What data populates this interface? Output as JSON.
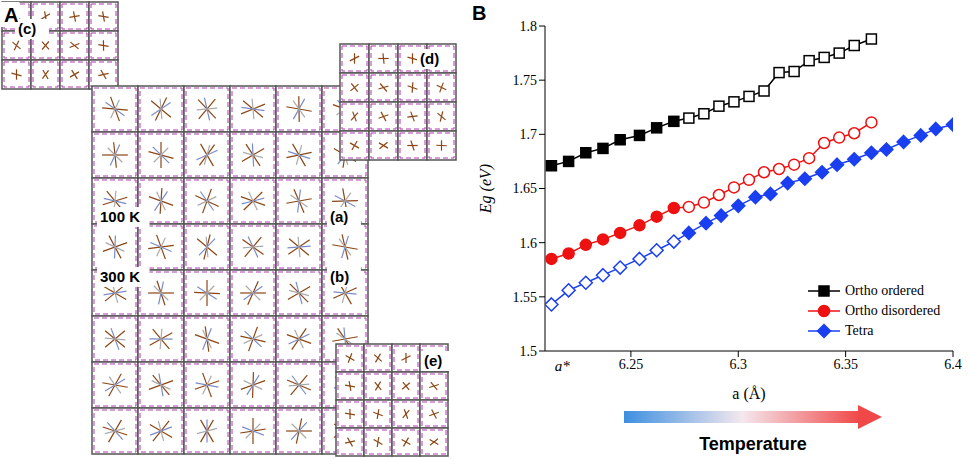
{
  "panel_letters": [
    "A",
    "B"
  ],
  "panel_a": {
    "labels": {
      "a": "(a)",
      "b": "(b)",
      "c": "(c)",
      "d": "(d)",
      "e": "(e)"
    },
    "temperatures": [
      "100 K",
      "300 K"
    ]
  },
  "chart_data": {
    "type": "line",
    "x_label": "a (Å)",
    "y_label": "Eg (eV)",
    "xlim": [
      6.21,
      6.4
    ],
    "xticks": [
      6.25,
      6.3,
      6.35,
      6.4
    ],
    "ylim": [
      1.5,
      1.8
    ],
    "yticks": [
      1.5,
      1.55,
      1.6,
      1.65,
      1.7,
      1.75,
      1.8
    ],
    "legend": "lower right",
    "annotations": [
      {
        "text": "a*",
        "x": 6.218
      }
    ],
    "arrow_label": "Temperature",
    "series": [
      {
        "name": "Ortho ordered",
        "color": "#000000",
        "marker": "square",
        "segments": [
          {
            "marker": "filled",
            "x": [
              6.213,
              6.221,
              6.229,
              6.237,
              6.245,
              6.254,
              6.262,
              6.27
            ],
            "values": [
              1.671,
              1.675,
              1.683,
              1.687,
              1.695,
              1.699,
              1.706,
              1.712
            ]
          },
          {
            "marker": "open",
            "x": [
              6.277,
              6.284,
              6.291,
              6.298,
              6.305,
              6.312,
              6.319,
              6.326,
              6.333,
              6.34,
              6.347,
              6.354,
              6.362
            ],
            "values": [
              1.715,
              1.719,
              1.726,
              1.73,
              1.735,
              1.74,
              1.757,
              1.758,
              1.768,
              1.771,
              1.775,
              1.782,
              1.788
            ]
          }
        ]
      },
      {
        "name": "Ortho disordered",
        "color": "#ee1111",
        "marker": "circle",
        "segments": [
          {
            "marker": "filled",
            "x": [
              6.213,
              6.221,
              6.229,
              6.237,
              6.245,
              6.254,
              6.262,
              6.27
            ],
            "values": [
              1.585,
              1.59,
              1.598,
              1.603,
              1.609,
              1.616,
              1.624,
              1.632
            ]
          },
          {
            "marker": "open",
            "x": [
              6.277,
              6.284,
              6.291,
              6.298,
              6.305,
              6.312,
              6.319,
              6.326,
              6.333,
              6.34,
              6.347,
              6.354,
              6.362
            ],
            "values": [
              1.633,
              1.637,
              1.644,
              1.651,
              1.658,
              1.665,
              1.668,
              1.672,
              1.678,
              1.692,
              1.697,
              1.701,
              1.711
            ]
          }
        ]
      },
      {
        "name": "Tetra",
        "color": "#1a3ff0",
        "marker": "diamond",
        "segments": [
          {
            "marker": "open",
            "x": [
              6.213,
              6.221,
              6.229,
              6.237,
              6.245,
              6.254,
              6.262,
              6.27
            ],
            "values": [
              1.543,
              1.556,
              1.563,
              1.57,
              1.577,
              1.585,
              1.593,
              1.601
            ]
          },
          {
            "marker": "filled",
            "x": [
              6.277,
              6.285,
              6.292,
              6.3,
              6.308,
              6.315,
              6.323,
              6.331,
              6.339,
              6.346,
              6.354,
              6.362,
              6.369,
              6.377,
              6.385,
              6.392,
              6.4
            ],
            "values": [
              1.609,
              1.618,
              1.625,
              1.634,
              1.642,
              1.645,
              1.655,
              1.659,
              1.665,
              1.672,
              1.677,
              1.683,
              1.686,
              1.693,
              1.699,
              1.705,
              1.709
            ]
          }
        ]
      }
    ]
  }
}
